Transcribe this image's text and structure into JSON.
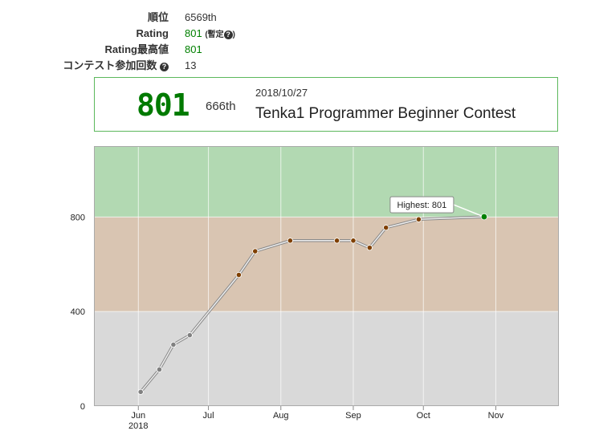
{
  "profile": {
    "rank_label": "順位",
    "rank_value": "6569th",
    "rating_label": "Rating",
    "rating_value": "801",
    "rating_note": "(暫定",
    "rating_note_close": ")",
    "highest_label": "Rating最高値",
    "highest_value": "801",
    "contests_label": "コンテスト参加回数",
    "contests_value": "13",
    "help_icon": "?"
  },
  "latest_contest": {
    "rating": "801",
    "rank": "666th",
    "date": "2018/10/27",
    "name": "Tenka1 Programmer Beginner Contest"
  },
  "chart_data": {
    "type": "line",
    "x_ticks": [
      {
        "label": "Jun",
        "sub": "2018",
        "date": "2018-06-01"
      },
      {
        "label": "Jul",
        "sub": "",
        "date": "2018-07-01"
      },
      {
        "label": "Aug",
        "sub": "",
        "date": "2018-08-01"
      },
      {
        "label": "Sep",
        "sub": "",
        "date": "2018-09-01"
      },
      {
        "label": "Oct",
        "sub": "",
        "date": "2018-10-01"
      },
      {
        "label": "Nov",
        "sub": "",
        "date": "2018-11-01"
      }
    ],
    "y_ticks": [
      0,
      400,
      800
    ],
    "ylim": [
      0,
      1100
    ],
    "xlim": [
      "2018-05-13",
      "2018-11-28"
    ],
    "bands": [
      {
        "from": 0,
        "to": 400,
        "color": "#d9d9d9"
      },
      {
        "from": 400,
        "to": 800,
        "color": "#d9c5b2"
      },
      {
        "from": 800,
        "to": 1100,
        "color": "#b2d9b2"
      }
    ],
    "series": [
      {
        "points": [
          {
            "date": "2018-06-02",
            "rating": 60,
            "color": "#808080"
          },
          {
            "date": "2018-06-10",
            "rating": 155,
            "color": "#808080"
          },
          {
            "date": "2018-06-16",
            "rating": 260,
            "color": "#808080"
          },
          {
            "date": "2018-06-23",
            "rating": 300,
            "color": "#808080"
          },
          {
            "date": "2018-07-14",
            "rating": 555,
            "color": "#804000"
          },
          {
            "date": "2018-07-21",
            "rating": 655,
            "color": "#804000"
          },
          {
            "date": "2018-08-05",
            "rating": 700,
            "color": "#804000"
          },
          {
            "date": "2018-08-25",
            "rating": 700,
            "color": "#804000"
          },
          {
            "date": "2018-09-01",
            "rating": 700,
            "color": "#804000"
          },
          {
            "date": "2018-09-08",
            "rating": 670,
            "color": "#804000"
          },
          {
            "date": "2018-09-15",
            "rating": 755,
            "color": "#804000"
          },
          {
            "date": "2018-09-29",
            "rating": 790,
            "color": "#804000"
          },
          {
            "date": "2018-10-27",
            "rating": 801,
            "color": "#008000"
          }
        ]
      }
    ],
    "annotation": {
      "text": "Highest: 801",
      "point_index": 12
    }
  }
}
